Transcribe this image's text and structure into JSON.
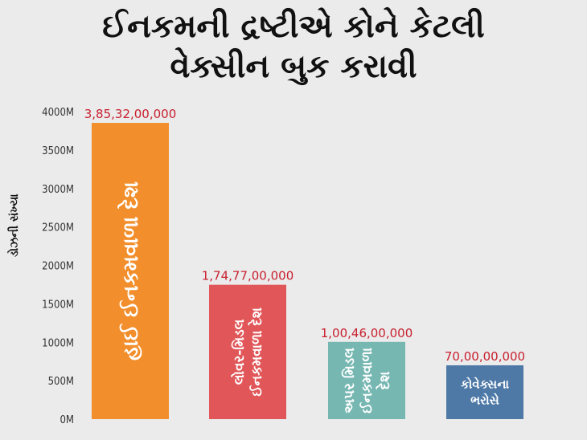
{
  "chart_data": {
    "type": "bar",
    "title_lines": [
      "ઈનકમની દ્રષ્ટીએ કોને કેટલી",
      "વેક્સીન બુક કરાવી"
    ],
    "ylabel": "ડોઝની સંખ્યા",
    "ylim": [
      0,
      4000
    ],
    "yticks": [
      "0M",
      "500M",
      "1000M",
      "1500M",
      "2000M",
      "2500M",
      "3000M",
      "3500M",
      "4000M"
    ],
    "ytick_values": [
      0,
      500,
      1000,
      1500,
      2000,
      2500,
      3000,
      3500,
      4000
    ],
    "grid": false,
    "bars": [
      {
        "label": "હાઈ ઈનકમવાળા દેશ",
        "label_lines": [
          "હાઈ ઈનકમવાળા દેશ"
        ],
        "value": 3853.2,
        "value_label": "3,85,32,00,000",
        "color": "#f28e2b",
        "text_rotated": true
      },
      {
        "label": "લોવર-મિડલ ઈનકમવાળા દેશ",
        "label_lines": [
          "લોવર-મિડલ",
          "ઈનકમવાળા દેશ"
        ],
        "value": 1747.7,
        "value_label": "1,74,77,00,000",
        "color": "#e15759",
        "text_rotated": true
      },
      {
        "label": "અપર મિડલ ઈનકમવાળા દેશ",
        "label_lines": [
          "અપર મિડલ",
          "ઈનકમવાળા",
          "દેશ"
        ],
        "value": 1004.6,
        "value_label": "1,00,46,00,000",
        "color": "#76b7b2",
        "text_rotated": true
      },
      {
        "label": "કોવેક્સના ભરોસે",
        "label_lines": [
          "કોવેક્સના",
          "ભરોસે"
        ],
        "value": 700,
        "value_label": "70,00,00,000",
        "color": "#4e79a7",
        "text_rotated": false
      }
    ]
  }
}
